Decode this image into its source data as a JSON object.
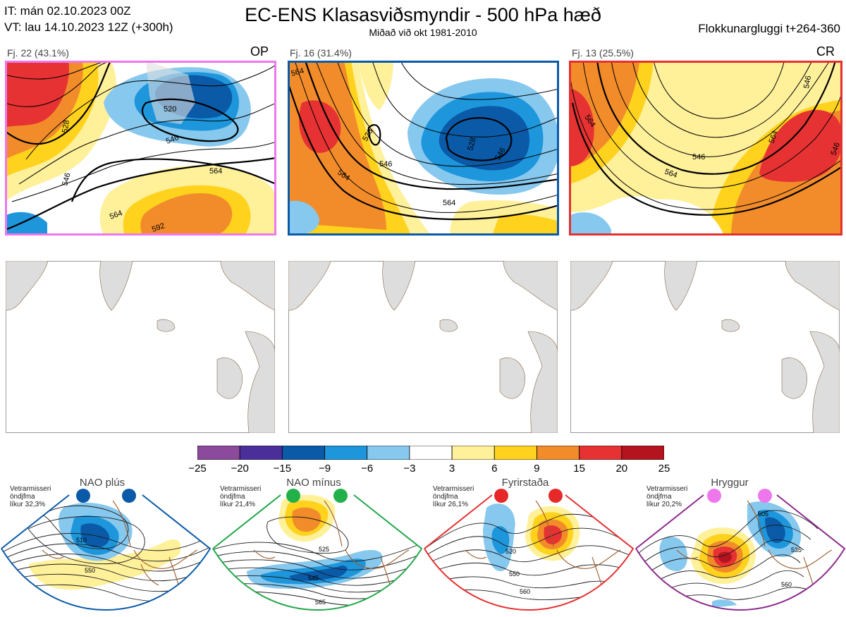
{
  "header": {
    "it_line": "IT: mán 02.10.2023 00Z",
    "vt_line": "VT: lau 14.10.2023 12Z  (+300h)",
    "title": "EC-ENS Klasasviðsmyndir - 500 hPa hæð",
    "subtitle": "Miðað við okt 1981-2010",
    "window": "Flokkunargluggi t+264-360"
  },
  "clusters": [
    {
      "label": "Fj. 22 (43.1%)",
      "tag": "OP",
      "border_color": "#ee77ee",
      "contour_labels": [
        "528",
        "520",
        "546",
        "546",
        "564",
        "564",
        "592"
      ]
    },
    {
      "label": "Fj. 16 (31.4%)",
      "tag": "",
      "border_color": "#0a5aa8",
      "contour_labels": [
        "564",
        "528",
        "528",
        "546",
        "546",
        "564",
        "564"
      ]
    },
    {
      "label": "Fj. 13 (25.5%)",
      "tag": "CR",
      "border_color": "#e53030",
      "contour_labels": [
        "564",
        "546",
        "564",
        "546",
        "564",
        "546"
      ]
    }
  ],
  "colorbar": {
    "colors": [
      "#8b4a9c",
      "#4a2f9a",
      "#0a5aa8",
      "#1e96dc",
      "#87c8ee",
      "#ffffff",
      "#fff09a",
      "#ffd21e",
      "#f28c2a",
      "#e63232",
      "#b4141e"
    ],
    "ticks": [
      "−25",
      "−20",
      "−15",
      "−9",
      "−6",
      "−3",
      "3",
      "6",
      "9",
      "15",
      "20",
      "25"
    ]
  },
  "regimes": [
    {
      "name": "NAO plús",
      "note": [
        "Vetrarmisseri",
        "öndjfma",
        "líkur 32,3%"
      ],
      "border_color": "#0a5aa8",
      "dot_color": "#0a5aa8",
      "contour_labels": [
        "510",
        "550"
      ]
    },
    {
      "name": "NAO mínus",
      "note": [
        "Vetrarmisseri",
        "öndjfma",
        "líkur 21,4%"
      ],
      "border_color": "#22a84a",
      "dot_color": "#22b04a",
      "contour_labels": [
        "525",
        "545",
        "565"
      ]
    },
    {
      "name": "Fyrirstaða",
      "note": [
        "Vetrarmisseri",
        "öndjfma",
        "líkur 26,1%"
      ],
      "border_color": "#e53030",
      "dot_color": "#e62828",
      "contour_labels": [
        "520",
        "550",
        "560"
      ]
    },
    {
      "name": "Hryggur",
      "note": [
        "Vetrarmisseri",
        "öndjfma",
        "líkur 20,2%"
      ],
      "border_color": "#8b2a8b",
      "dot_color": "#ee77ee",
      "contour_labels": [
        "505",
        "535",
        "560"
      ]
    }
  ]
}
